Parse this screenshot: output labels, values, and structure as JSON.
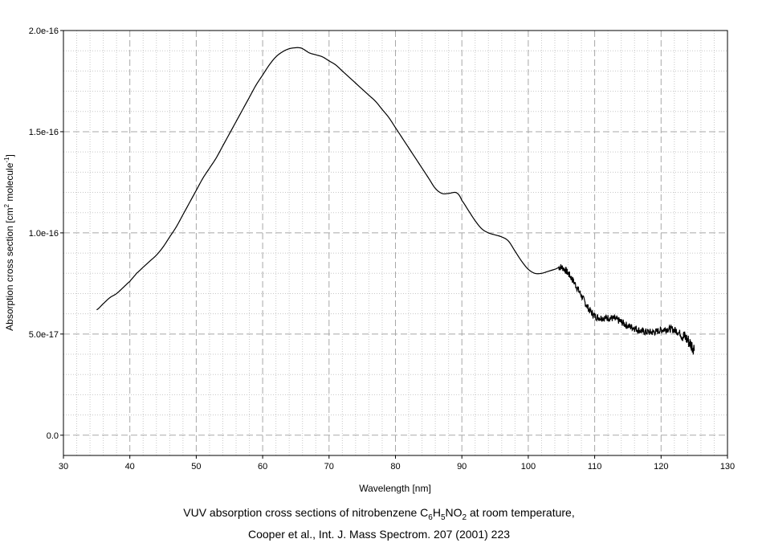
{
  "chart_data": {
    "type": "line",
    "xlabel": "Wavelength [nm]",
    "ylabel": {
      "prefix": "Absorption cross section [cm",
      "sup1": "2",
      "mid": " molecule",
      "sup2": "-1",
      "suffix": "]"
    },
    "xlim": [
      30,
      130
    ],
    "ylim": [
      -1e-17,
      2e-16
    ],
    "x_ticks": [
      30,
      40,
      50,
      60,
      70,
      80,
      90,
      100,
      110,
      120,
      130
    ],
    "y_ticks": [
      {
        "value": 0,
        "label": "0.0"
      },
      {
        "value": 5e-17,
        "label": "5.0e-17"
      },
      {
        "value": 1e-16,
        "label": "1.0e-16"
      },
      {
        "value": 1.5e-16,
        "label": "1.5e-16"
      },
      {
        "value": 2e-16,
        "label": "2.0e-16"
      }
    ],
    "grid": true,
    "series": [
      {
        "color": "#000000",
        "x": [
          35,
          36,
          37,
          38,
          39,
          40,
          40.5,
          41,
          42,
          43,
          44,
          45,
          46,
          47,
          48,
          49,
          50,
          51,
          52,
          53,
          54,
          55,
          56,
          57,
          58,
          59,
          60,
          61,
          62,
          63,
          64,
          65,
          65.5,
          66,
          67,
          68,
          69,
          70,
          71,
          72,
          73,
          74,
          75,
          76,
          77,
          78,
          79,
          80,
          81,
          82,
          83,
          84,
          85,
          86,
          87,
          88,
          89,
          89.5,
          90,
          91,
          92,
          93,
          94,
          95,
          96,
          97,
          98,
          99,
          100,
          101,
          102,
          103,
          104,
          105,
          106,
          107,
          108,
          109,
          110,
          111,
          112,
          113,
          114,
          115,
          116,
          117,
          118,
          119,
          120,
          121,
          122,
          123,
          124,
          125
        ],
        "y": [
          6.2e-17,
          6.5e-17,
          6.8e-17,
          7e-17,
          7.3e-17,
          7.6e-17,
          7.8e-17,
          8e-17,
          8.3e-17,
          8.6e-17,
          8.9e-17,
          9.3e-17,
          9.8e-17,
          1.03e-16,
          1.09e-16,
          1.15e-16,
          1.21e-16,
          1.27e-16,
          1.32e-16,
          1.37e-16,
          1.43e-16,
          1.49e-16,
          1.55e-16,
          1.61e-16,
          1.67e-16,
          1.73e-16,
          1.78e-16,
          1.83e-16,
          1.87e-16,
          1.895e-16,
          1.91e-16,
          1.915e-16,
          1.915e-16,
          1.91e-16,
          1.89e-16,
          1.88e-16,
          1.87e-16,
          1.85e-16,
          1.83e-16,
          1.8e-16,
          1.77e-16,
          1.74e-16,
          1.71e-16,
          1.68e-16,
          1.65e-16,
          1.61e-16,
          1.57e-16,
          1.52e-16,
          1.47e-16,
          1.42e-16,
          1.37e-16,
          1.32e-16,
          1.27e-16,
          1.22e-16,
          1.195e-16,
          1.195e-16,
          1.2e-16,
          1.19e-16,
          1.16e-16,
          1.11e-16,
          1.06e-16,
          1.02e-16,
          1e-16,
          9.9e-17,
          9.8e-17,
          9.6e-17,
          9.1e-17,
          8.6e-17,
          8.2e-17,
          8e-17,
          8e-17,
          8.1e-17,
          8.2e-17,
          8.3e-17,
          8e-17,
          7.5e-17,
          6.9e-17,
          6.3e-17,
          5.9e-17,
          5.8e-17,
          5.8e-17,
          5.75e-17,
          5.6e-17,
          5.4e-17,
          5.3e-17,
          5.15e-17,
          5.1e-17,
          5.1e-17,
          5.2e-17,
          5.25e-17,
          5.2e-17,
          5e-17,
          4.7e-17,
          4.3e-17
        ]
      }
    ]
  },
  "caption": {
    "line1_prefix": "VUV absorption cross sections of nitrobenzene C",
    "line1_sub1": "6",
    "line1_h": "H",
    "line1_sub2": "5",
    "line1_no": "NO",
    "line1_sub3": "2",
    "line1_suffix": " at room temperature,",
    "line2": "Cooper et al., Int. J. Mass Spectrom. 207 (2001) 223"
  }
}
